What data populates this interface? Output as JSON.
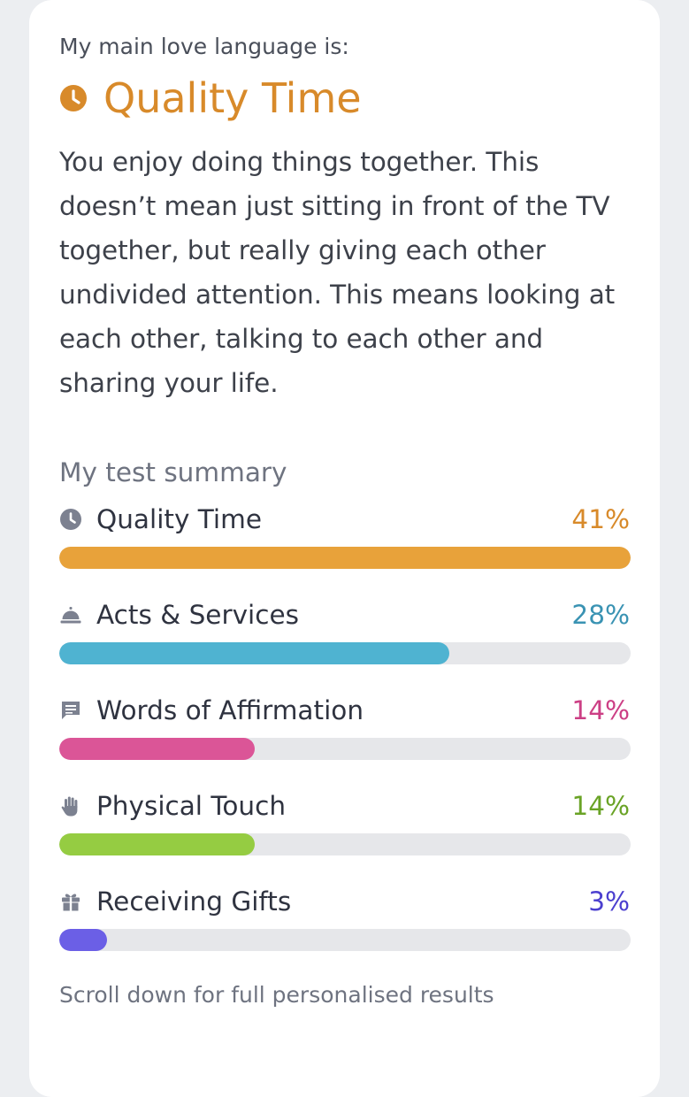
{
  "header": {
    "eyebrow": "My main love language is:",
    "title": "Quality Time",
    "title_color": "#d88a2a",
    "title_icon": "clock-icon",
    "description": "You enjoy doing things together. This doesn’t mean just sitting in front of the TV together, but really giving each other undivided attention. This means looking at each other, talking to each other and sharing your life."
  },
  "summary": {
    "heading": "My test summary",
    "items": [
      {
        "label": "Quality Time",
        "percent_text": "41%",
        "value": 41,
        "color": "#e8a23a",
        "text_color": "#d88a2a",
        "icon": "clock-icon"
      },
      {
        "label": "Acts & Services",
        "percent_text": "28%",
        "value": 28,
        "color": "#4fb3d1",
        "text_color": "#3a93b3",
        "icon": "service-bell-icon"
      },
      {
        "label": "Words of Affirmation",
        "percent_text": "14%",
        "value": 14,
        "color": "#db5597",
        "text_color": "#cc3f85",
        "icon": "chat-bubble-icon"
      },
      {
        "label": "Physical Touch",
        "percent_text": "14%",
        "value": 14,
        "color": "#95cc42",
        "text_color": "#6aa326",
        "icon": "hand-icon"
      },
      {
        "label": "Receiving Gifts",
        "percent_text": "3%",
        "value": 3,
        "color": "#6b5fe6",
        "text_color": "#4b3fcf",
        "icon": "gift-icon"
      }
    ]
  },
  "footer": {
    "note": "Scroll down for full personalised results"
  }
}
